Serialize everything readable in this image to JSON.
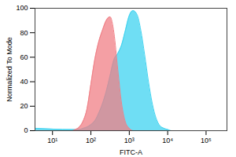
{
  "chart_data": {
    "type": "area",
    "x_label": "FITC-A",
    "y_label": "Normalized To Mode",
    "log": "x",
    "grid": false,
    "x": [
      3.5,
      31.6,
      39.8,
      50.1,
      63.1,
      79.4,
      100,
      126,
      158,
      200,
      251,
      316,
      398,
      501,
      631,
      794,
      1000,
      1259,
      1585,
      1995,
      2512,
      3162,
      3981,
      5012,
      6310,
      7943,
      10000,
      12589,
      15849,
      350000
    ],
    "series": [
      {
        "color": "#3fd3f0",
        "values": [
          2,
          1,
          1,
          1,
          2,
          3,
          5,
          8,
          14,
          22,
          32,
          45,
          58,
          63,
          70,
          82,
          94,
          98,
          95,
          82,
          62,
          40,
          22,
          10,
          4,
          2,
          1,
          0,
          0,
          0
        ]
      },
      {
        "color": "#f07f86",
        "values": [
          0,
          0,
          1,
          3,
          8,
          18,
          38,
          58,
          72,
          82,
          90,
          93,
          80,
          50,
          22,
          7,
          2,
          0,
          0,
          0,
          0,
          0,
          0,
          0,
          0,
          0,
          0,
          0,
          0,
          0
        ]
      }
    ],
    "xlim": [
      3.5,
      350000
    ],
    "xticks": [
      {
        "value": 10,
        "label": "10¹"
      },
      {
        "value": 100,
        "label": "10²"
      },
      {
        "value": 1000,
        "label": "10³"
      },
      {
        "value": 10000,
        "label": "10⁴"
      },
      {
        "value": 100000,
        "label": "10⁵"
      }
    ],
    "ylim": [
      0,
      100
    ],
    "yticks": [
      0,
      20,
      40,
      60,
      80,
      100
    ]
  }
}
